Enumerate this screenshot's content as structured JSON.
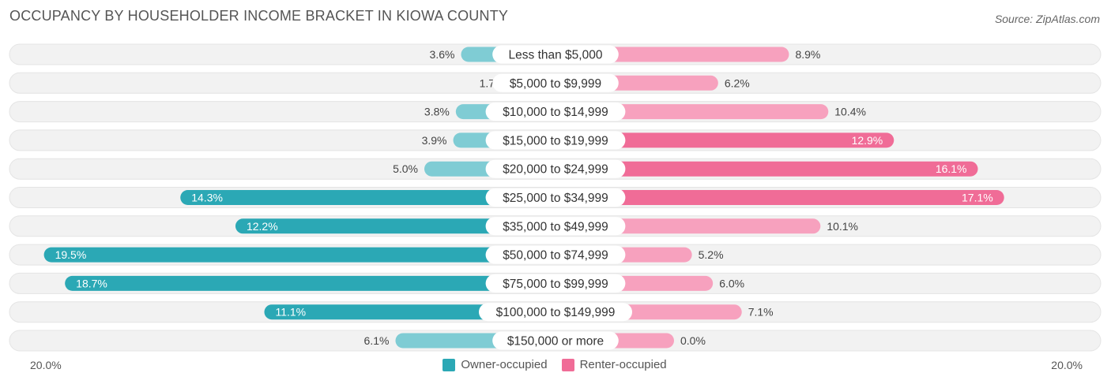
{
  "header": {
    "title": "OCCUPANCY BY HOUSEHOLDER INCOME BRACKET IN KIOWA COUNTY",
    "source": "Source: ZipAtlas.com"
  },
  "colors": {
    "owner_dark": "#2BA8B5",
    "owner_light": "#7FCCD4",
    "renter_dark": "#F06C97",
    "renter_light": "#F7A1BE",
    "row_background": "#F2F2F2"
  },
  "chart_data": {
    "type": "bar",
    "orientation": "horizontal-diverging",
    "categories": [
      "Less than $5,000",
      "$5,000 to $9,999",
      "$10,000 to $14,999",
      "$15,000 to $19,999",
      "$20,000 to $24,999",
      "$25,000 to $34,999",
      "$35,000 to $49,999",
      "$50,000 to $74,999",
      "$75,000 to $99,999",
      "$100,000 to $149,999",
      "$150,000 or more"
    ],
    "series": [
      {
        "name": "Owner-occupied",
        "values": [
          3.6,
          1.7,
          3.8,
          3.9,
          5.0,
          14.3,
          12.2,
          19.5,
          18.7,
          11.1,
          6.1
        ],
        "labels": [
          "3.6%",
          "1.7%",
          "3.8%",
          "3.9%",
          "5.0%",
          "14.3%",
          "12.2%",
          "19.5%",
          "18.7%",
          "11.1%",
          "6.1%"
        ]
      },
      {
        "name": "Renter-occupied",
        "values": [
          8.9,
          6.2,
          10.4,
          12.9,
          16.1,
          17.1,
          10.1,
          5.2,
          6.0,
          7.1,
          0.0
        ],
        "labels": [
          "8.9%",
          "6.2%",
          "10.4%",
          "12.9%",
          "16.1%",
          "17.1%",
          "10.1%",
          "5.2%",
          "6.0%",
          "7.1%",
          "0.0%"
        ]
      }
    ],
    "xlim": [
      -20,
      20
    ],
    "axis_min_label": "20.0%",
    "axis_max_label": "20.0%",
    "legend_position": "bottom-center"
  }
}
